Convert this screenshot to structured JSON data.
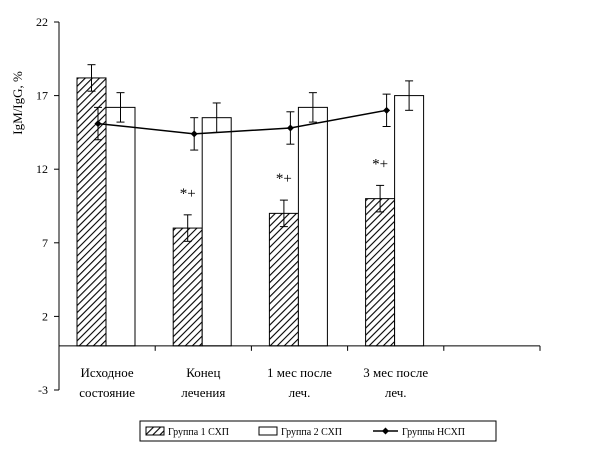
{
  "chart_data": {
    "type": "bar",
    "ylabel": "IgM/IgG, %",
    "ylim": [
      -3,
      22
    ],
    "yticks": [
      "22",
      "17",
      "12",
      "7",
      "2",
      "-3"
    ],
    "ytick_values": [
      22,
      17,
      12,
      7,
      2,
      -3
    ],
    "categories": [
      [
        "Исходное",
        "состояние"
      ],
      [
        "Конец",
        "лечения"
      ],
      [
        "1 мес после",
        "леч."
      ],
      [
        "3 мес после",
        "леч."
      ]
    ],
    "series": [
      {
        "name": "Группа 1 СХП",
        "kind": "bar",
        "fill": "hatched",
        "values": [
          18.2,
          8.0,
          9.0,
          10.0
        ],
        "errors": [
          0.9,
          0.9,
          0.9,
          0.9
        ]
      },
      {
        "name": "Группа 2 СХП",
        "kind": "bar",
        "fill": "white",
        "values": [
          16.2,
          15.5,
          16.2,
          17.0
        ],
        "errors": [
          1.0,
          1.0,
          1.0,
          1.0
        ]
      },
      {
        "name": "Группы НСХП",
        "kind": "line",
        "values": [
          15.1,
          14.4,
          14.8,
          16.0
        ],
        "errors": [
          1.1,
          1.1,
          1.1,
          1.1
        ]
      }
    ],
    "annotations": [
      "",
      "*+",
      "*+",
      "*+"
    ],
    "legend": {
      "position": "bottom"
    },
    "grid": false
  }
}
